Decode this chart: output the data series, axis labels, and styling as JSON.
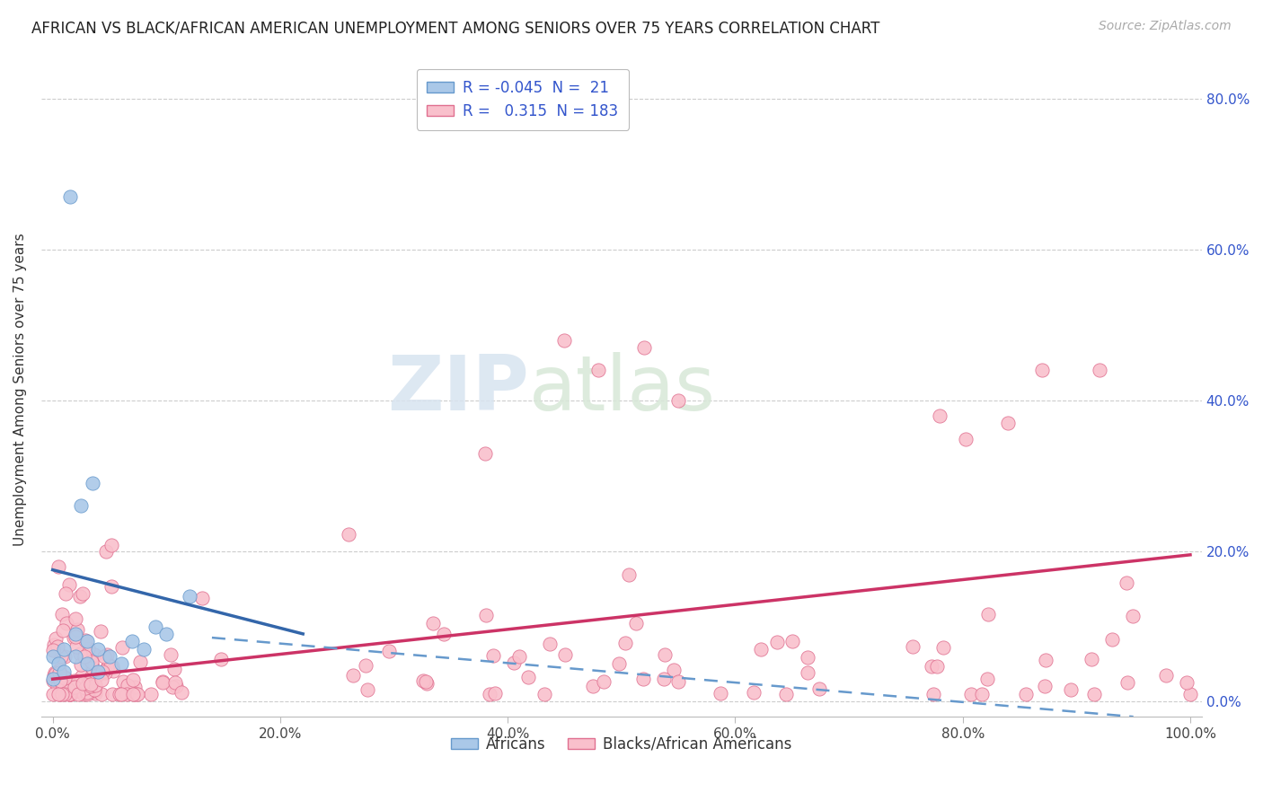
{
  "title": "AFRICAN VS BLACK/AFRICAN AMERICAN UNEMPLOYMENT AMONG SENIORS OVER 75 YEARS CORRELATION CHART",
  "source": "Source: ZipAtlas.com",
  "ylabel": "Unemployment Among Seniors over 75 years",
  "xlim": [
    -0.01,
    1.01
  ],
  "ylim": [
    -0.02,
    0.85
  ],
  "xticks": [
    0.0,
    0.2,
    0.4,
    0.6,
    0.8,
    1.0
  ],
  "yticks": [
    0.0,
    0.2,
    0.4,
    0.6,
    0.8
  ],
  "xtick_labels": [
    "0.0%",
    "20.0%",
    "40.0%",
    "60.0%",
    "80.0%",
    "100.0%"
  ],
  "right_ytick_labels": [
    "0.0%",
    "20.0%",
    "40.0%",
    "60.0%",
    "80.0%"
  ],
  "african_color": "#aac8e8",
  "african_edge": "#6699cc",
  "black_color": "#f9c0cc",
  "black_edge": "#e07090",
  "trend_african_color": "#3366aa",
  "trend_black_solid_color": "#cc3366",
  "trend_black_dashed_color": "#6699cc",
  "R_african": -0.045,
  "N_african": 21,
  "R_black": 0.315,
  "N_black": 183,
  "legend_label_african": "Africans",
  "legend_label_black": "Blacks/African Americans",
  "watermark_zip": "ZIP",
  "watermark_atlas": "atlas",
  "af_trend_x0": 0.0,
  "af_trend_y0": 0.175,
  "af_trend_x1": 0.22,
  "af_trend_y1": 0.09,
  "baa_trend_solid_x0": 0.0,
  "baa_trend_solid_y0": 0.03,
  "baa_trend_solid_x1": 1.0,
  "baa_trend_solid_y1": 0.195,
  "baa_trend_dashed_x0": 0.14,
  "baa_trend_dashed_y0": 0.085,
  "baa_trend_dashed_x1": 0.95,
  "baa_trend_dashed_y1": -0.02
}
